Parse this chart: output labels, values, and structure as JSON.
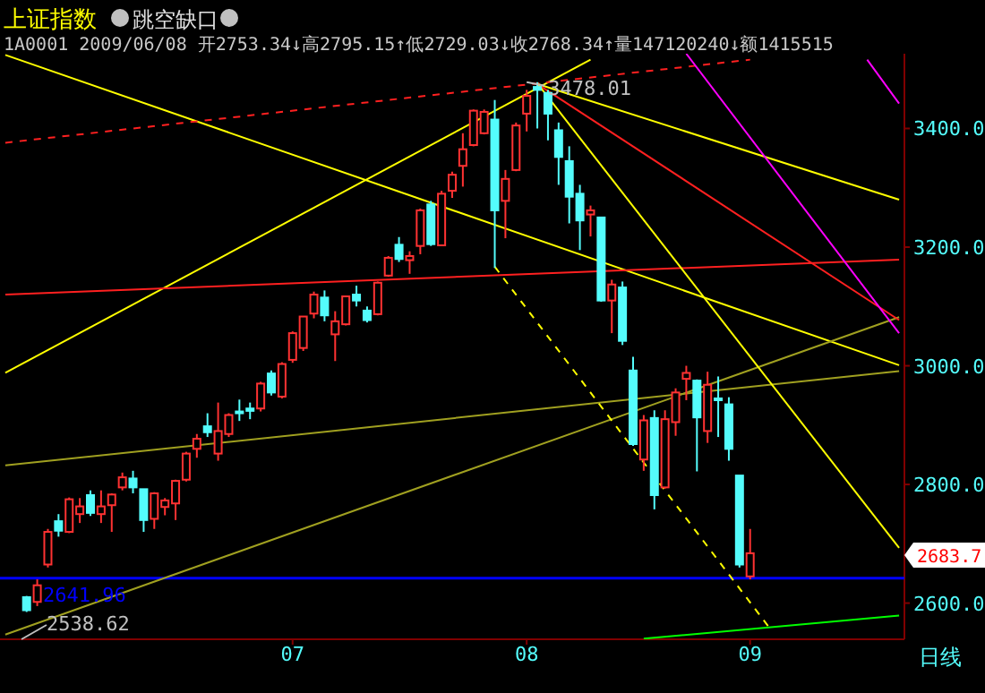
{
  "chart_data": {
    "type": "candlestick",
    "title": "上证指数",
    "subtitle": "1A0001 2009/06/08 开2753.34↓高2795.15↑低2729.03↓收2768.34↑量147120240↓额1415515",
    "categories": [
      null,
      null,
      null,
      null,
      null,
      null,
      null,
      null,
      null,
      null,
      null,
      null,
      null,
      null,
      null,
      null,
      null,
      null,
      null,
      null,
      null,
      null,
      null,
      null,
      null,
      null,
      null,
      "07",
      null,
      null,
      null,
      null,
      null,
      null,
      null,
      null,
      null,
      null,
      null,
      null,
      null,
      null,
      null,
      null,
      null,
      null,
      null,
      null,
      null,
      "08",
      null,
      null,
      null,
      null,
      null,
      null,
      null,
      null,
      null,
      null,
      null,
      null,
      null,
      null,
      null,
      null,
      null,
      null,
      null,
      null,
      "09",
      null,
      null,
      null,
      null,
      null,
      null,
      null,
      null,
      null,
      null,
      null,
      null,
      null,
      null
    ],
    "ohlc": [
      null,
      null,
      [
        2610,
        2612,
        2585,
        2588
      ],
      [
        2602,
        2640,
        2595,
        2630
      ],
      [
        2665,
        2725,
        2660,
        2720
      ],
      [
        2738,
        2750,
        2712,
        2722
      ],
      [
        2720,
        2778,
        2718,
        2775
      ],
      [
        2750,
        2777,
        2735,
        2763
      ],
      [
        2782,
        2790,
        2747,
        2752
      ],
      [
        2750,
        2790,
        2735,
        2763
      ],
      [
        2765,
        2785,
        2720,
        2783
      ],
      [
        2795,
        2820,
        2790,
        2812
      ],
      [
        2810,
        2823,
        2785,
        2795
      ],
      [
        2792,
        2792,
        2720,
        2740
      ],
      [
        2742,
        2787,
        2725,
        2785
      ],
      [
        2762,
        2777,
        2748,
        2773
      ],
      [
        2768,
        2808,
        2740,
        2806
      ],
      [
        2808,
        2855,
        2805,
        2852
      ],
      [
        2860,
        2885,
        2845,
        2877
      ],
      [
        2898,
        2920,
        2880,
        2888
      ],
      [
        2852,
        2938,
        2840,
        2890
      ],
      [
        2885,
        2920,
        2880,
        2917
      ],
      [
        2923,
        2943,
        2907,
        2920
      ],
      [
        2928,
        2938,
        2910,
        2924
      ],
      [
        2928,
        2973,
        2923,
        2970
      ],
      [
        2987,
        2992,
        2950,
        2955
      ],
      [
        2948,
        3006,
        2945,
        3003
      ],
      [
        3010,
        3058,
        3005,
        3055
      ],
      [
        3030,
        3083,
        3025,
        3083
      ],
      [
        3088,
        3125,
        3080,
        3120
      ],
      [
        3115,
        3127,
        3075,
        3085
      ],
      [
        3053,
        3092,
        3008,
        3075
      ],
      [
        3070,
        3118,
        3068,
        3117
      ],
      [
        3120,
        3135,
        3100,
        3110
      ],
      [
        3093,
        3100,
        3073,
        3077
      ],
      [
        3087,
        3142,
        3085,
        3140
      ],
      [
        3152,
        3185,
        3150,
        3182
      ],
      [
        3204,
        3217,
        3175,
        3180
      ],
      [
        3178,
        3193,
        3155,
        3185
      ],
      [
        3202,
        3265,
        3188,
        3262
      ],
      [
        3272,
        3278,
        3202,
        3205
      ],
      [
        3203,
        3295,
        3202,
        3290
      ],
      [
        3295,
        3327,
        3283,
        3322
      ],
      [
        3337,
        3392,
        3302,
        3365
      ],
      [
        3372,
        3432,
        3370,
        3430
      ],
      [
        3392,
        3432,
        3390,
        3428
      ],
      [
        3415,
        3448,
        3165,
        3262
      ],
      [
        3278,
        3330,
        3215,
        3315
      ],
      [
        3330,
        3410,
        3328,
        3405
      ],
      [
        3425,
        3465,
        3395,
        3455
      ],
      [
        3470,
        3478,
        3400,
        3465
      ],
      [
        3460,
        3465,
        3380,
        3425
      ],
      [
        3397,
        3410,
        3305,
        3352
      ],
      [
        3345,
        3370,
        3240,
        3285
      ],
      [
        3290,
        3305,
        3195,
        3245
      ],
      [
        3255,
        3270,
        3218,
        3262
      ],
      [
        3250,
        3250,
        3108,
        3110
      ],
      [
        3110,
        3145,
        3055,
        3137
      ],
      [
        3132,
        3142,
        3035,
        3042
      ],
      [
        2992,
        3015,
        2865,
        2868
      ],
      [
        2842,
        2917,
        2823,
        2908
      ],
      [
        2912,
        2925,
        2758,
        2782
      ],
      [
        2795,
        2925,
        2793,
        2910
      ],
      [
        2905,
        2962,
        2882,
        2955
      ],
      [
        2978,
        3000,
        2942,
        2988
      ],
      [
        2975,
        2977,
        2822,
        2913
      ],
      [
        2890,
        2990,
        2870,
        2968
      ],
      [
        2945,
        2982,
        2880,
        2942
      ],
      [
        2935,
        2947,
        2840,
        2860
      ],
      [
        2815,
        2815,
        2660,
        2665
      ],
      [
        2645,
        2725,
        2640,
        2684
      ],
      null,
      null,
      null,
      null,
      null,
      null,
      null,
      null,
      null,
      null,
      null,
      null,
      null,
      null
    ],
    "colors": [
      null,
      null,
      "#54fcfc",
      "#ff3232",
      "#ff3232",
      "#54fcfc",
      "#ff3232",
      "#ff3232",
      "#54fcfc",
      "#ff3232",
      "#ff3232",
      "#ff3232",
      "#54fcfc",
      "#54fcfc",
      "#ff3232",
      "#ff3232",
      "#ff3232",
      "#ff3232",
      "#ff3232",
      "#54fcfc",
      "#ff3232",
      "#ff3232",
      "#54fcfc",
      "#54fcfc",
      "#ff3232",
      "#54fcfc",
      "#ff3232",
      "#ff3232",
      "#ff3232",
      "#ff3232",
      "#54fcfc",
      "#ff3232",
      "#ff3232",
      "#54fcfc",
      "#54fcfc",
      "#ff3232",
      "#ff3232",
      "#54fcfc",
      "#ff3232",
      "#ff3232",
      "#54fcfc",
      "#ff3232",
      "#ff3232",
      "#ff3232",
      "#ff3232",
      "#ff3232",
      "#54fcfc",
      "#ff3232",
      "#ff3232",
      "#ff3232",
      "#54fcfc",
      "#54fcfc",
      "#54fcfc",
      "#54fcfc",
      "#54fcfc",
      "#ff3232",
      "#54fcfc",
      "#ff3232",
      "#54fcfc",
      "#54fcfc",
      "#ff3232",
      "#54fcfc",
      "#ff3232",
      "#ff3232",
      "#ff3232",
      "#54fcfc",
      "#ff3232",
      "#54fcfc",
      "#54fcfc",
      "#54fcfc",
      "#ff3232",
      null,
      null,
      null,
      null,
      null,
      null,
      null,
      null,
      null,
      null,
      null,
      null,
      null,
      null
    ],
    "series": [
      {
        "type": "line",
        "color": "#ffff00",
        "values": [
          3524,
          null,
          null,
          null,
          null,
          null,
          null,
          null,
          null,
          null,
          null,
          null,
          null,
          null,
          null,
          null,
          null,
          null,
          null,
          null,
          null,
          null,
          null,
          null,
          null,
          null,
          null,
          null,
          null,
          null,
          null,
          null,
          null,
          null,
          null,
          null,
          null,
          null,
          null,
          null,
          null,
          null,
          null,
          null,
          null,
          null,
          null,
          null,
          null,
          null,
          null,
          null,
          null,
          null,
          null,
          null,
          null,
          null,
          null,
          null,
          null,
          null,
          null,
          null,
          null,
          null,
          null,
          null,
          null,
          null,
          null,
          null,
          null,
          null,
          null,
          null,
          null,
          null,
          null,
          null,
          null,
          null,
          null,
          null,
          3001
        ]
      },
      {
        "type": "line",
        "color": "#ffff00",
        "values": [
          2988,
          null,
          null,
          null,
          null,
          null,
          null,
          null,
          null,
          null,
          null,
          null,
          null,
          null,
          null,
          null,
          null,
          null,
          null,
          null,
          null,
          null,
          null,
          null,
          null,
          null,
          null,
          null,
          null,
          null,
          null,
          null,
          null,
          null,
          null,
          null,
          null,
          null,
          null,
          null,
          null,
          null,
          null,
          null,
          null,
          null,
          null,
          null,
          null,
          null,
          null,
          null,
          null,
          null,
          null,
          3516,
          null,
          null,
          null,
          null,
          null,
          null,
          null,
          null,
          null,
          null,
          null,
          null,
          null,
          null,
          null,
          null,
          null,
          null,
          null,
          null,
          null,
          null,
          null,
          null,
          null,
          null,
          null,
          null,
          null
        ]
      },
      {
        "type": "line",
        "color": "#ff2020",
        "line_style": "dashed",
        "values": [
          3376,
          null,
          null,
          null,
          null,
          null,
          null,
          null,
          null,
          null,
          null,
          null,
          null,
          null,
          null,
          null,
          null,
          null,
          null,
          null,
          null,
          null,
          null,
          null,
          null,
          null,
          null,
          null,
          null,
          null,
          null,
          null,
          null,
          null,
          null,
          null,
          null,
          null,
          null,
          null,
          null,
          null,
          null,
          null,
          null,
          null,
          null,
          null,
          null,
          null,
          null,
          null,
          null,
          null,
          null,
          null,
          null,
          null,
          null,
          null,
          null,
          null,
          null,
          null,
          null,
          null,
          null,
          null,
          null,
          null,
          3516,
          null,
          null,
          null,
          null,
          null,
          null,
          null,
          null,
          null,
          null,
          null,
          null,
          null,
          null
        ]
      },
      {
        "type": "line",
        "color": "#ff2020",
        "values": [
          3120,
          null,
          null,
          null,
          null,
          null,
          null,
          null,
          null,
          null,
          null,
          null,
          null,
          null,
          null,
          null,
          null,
          null,
          null,
          null,
          null,
          null,
          null,
          null,
          null,
          null,
          null,
          null,
          null,
          null,
          null,
          null,
          null,
          null,
          null,
          null,
          null,
          null,
          null,
          null,
          null,
          null,
          null,
          null,
          null,
          null,
          null,
          null,
          null,
          null,
          null,
          null,
          null,
          null,
          null,
          null,
          null,
          null,
          null,
          null,
          null,
          null,
          null,
          null,
          null,
          null,
          null,
          null,
          null,
          null,
          null,
          null,
          null,
          null,
          null,
          null,
          null,
          null,
          null,
          null,
          null,
          null,
          null,
          null,
          3179
        ]
      },
      {
        "type": "line",
        "color": "#a0a020",
        "values": [
          2832,
          null,
          null,
          null,
          null,
          null,
          null,
          null,
          null,
          null,
          null,
          null,
          null,
          null,
          null,
          null,
          null,
          null,
          null,
          null,
          null,
          null,
          null,
          null,
          null,
          null,
          null,
          null,
          null,
          null,
          null,
          null,
          null,
          null,
          null,
          null,
          null,
          null,
          null,
          null,
          null,
          null,
          null,
          null,
          null,
          null,
          null,
          null,
          null,
          null,
          null,
          null,
          null,
          null,
          null,
          null,
          null,
          null,
          null,
          null,
          null,
          null,
          null,
          null,
          null,
          null,
          null,
          null,
          null,
          null,
          null,
          null,
          null,
          null,
          null,
          null,
          null,
          null,
          null,
          null,
          null,
          null,
          null,
          null,
          2991
        ]
      },
      {
        "type": "line",
        "color": "#a0a020",
        "values": [
          2547,
          null,
          null,
          null,
          null,
          null,
          null,
          null,
          null,
          null,
          null,
          null,
          null,
          null,
          null,
          null,
          null,
          null,
          null,
          null,
          null,
          null,
          null,
          null,
          null,
          null,
          null,
          null,
          null,
          null,
          null,
          null,
          null,
          null,
          null,
          null,
          null,
          null,
          null,
          null,
          null,
          null,
          null,
          null,
          null,
          null,
          null,
          null,
          null,
          null,
          null,
          null,
          null,
          null,
          null,
          null,
          null,
          null,
          null,
          null,
          null,
          null,
          null,
          null,
          null,
          null,
          null,
          null,
          null,
          null,
          null,
          null,
          null,
          null,
          null,
          null,
          null,
          null,
          null,
          null,
          null,
          null,
          null,
          null,
          3082
        ]
      },
      {
        "type": "line",
        "color": "#ffff00",
        "values": [
          null,
          null,
          null,
          null,
          null,
          null,
          null,
          null,
          null,
          null,
          null,
          null,
          null,
          null,
          null,
          null,
          null,
          null,
          null,
          null,
          null,
          null,
          null,
          null,
          null,
          null,
          null,
          null,
          null,
          null,
          null,
          null,
          null,
          null,
          null,
          null,
          null,
          null,
          null,
          null,
          null,
          null,
          null,
          null,
          null,
          null,
          null,
          null,
          null,
          null,
          3475,
          null,
          null,
          null,
          null,
          null,
          null,
          null,
          null,
          null,
          null,
          null,
          null,
          null,
          null,
          null,
          null,
          null,
          null,
          null,
          null,
          null,
          null,
          null,
          null,
          null,
          null,
          null,
          null,
          null,
          null,
          null,
          null,
          null,
          3280
        ]
      },
      {
        "type": "line",
        "color": "#ff2020",
        "values": [
          null,
          null,
          null,
          null,
          null,
          null,
          null,
          null,
          null,
          null,
          null,
          null,
          null,
          null,
          null,
          null,
          null,
          null,
          null,
          null,
          null,
          null,
          null,
          null,
          null,
          null,
          null,
          null,
          null,
          null,
          null,
          null,
          null,
          null,
          null,
          null,
          null,
          null,
          null,
          null,
          null,
          null,
          null,
          null,
          null,
          null,
          null,
          null,
          null,
          null,
          3475,
          null,
          null,
          null,
          null,
          null,
          null,
          null,
          null,
          null,
          null,
          null,
          null,
          null,
          null,
          null,
          null,
          null,
          null,
          null,
          null,
          null,
          null,
          null,
          null,
          null,
          null,
          null,
          null,
          null,
          null,
          null,
          null,
          null,
          3077
        ]
      },
      {
        "type": "line",
        "color": "#ffff00",
        "values": [
          null,
          null,
          null,
          null,
          null,
          null,
          null,
          null,
          null,
          null,
          null,
          null,
          null,
          null,
          null,
          null,
          null,
          null,
          null,
          null,
          null,
          null,
          null,
          null,
          null,
          null,
          null,
          null,
          null,
          null,
          null,
          null,
          null,
          null,
          null,
          null,
          null,
          null,
          null,
          null,
          null,
          null,
          null,
          null,
          null,
          null,
          null,
          null,
          null,
          null,
          3476,
          null,
          null,
          null,
          null,
          null,
          null,
          null,
          null,
          null,
          null,
          null,
          null,
          null,
          null,
          null,
          null,
          null,
          null,
          null,
          null,
          null,
          null,
          null,
          null,
          null,
          null,
          null,
          null,
          null,
          null,
          null,
          null,
          null,
          2693
        ]
      },
      {
        "type": "line",
        "color": "#ffff00",
        "line_style": "dashed",
        "values": [
          null,
          null,
          null,
          null,
          null,
          null,
          null,
          null,
          null,
          null,
          null,
          null,
          null,
          null,
          null,
          null,
          null,
          null,
          null,
          null,
          null,
          null,
          null,
          null,
          null,
          null,
          null,
          null,
          null,
          null,
          null,
          null,
          null,
          null,
          null,
          null,
          null,
          null,
          null,
          null,
          null,
          null,
          null,
          null,
          null,
          null,
          3167,
          null,
          null,
          null,
          null,
          null,
          null,
          null,
          null,
          null,
          null,
          null,
          null,
          null,
          null,
          null,
          null,
          null,
          null,
          null,
          null,
          null,
          null,
          null,
          null,
          null,
          2554,
          null,
          null,
          null,
          null,
          null,
          null,
          null,
          null,
          null,
          null,
          null,
          null
        ]
      },
      {
        "type": "line",
        "color": "#ff00ff",
        "values": [
          null,
          null,
          null,
          null,
          null,
          null,
          null,
          null,
          null,
          null,
          null,
          null,
          null,
          null,
          null,
          null,
          null,
          null,
          null,
          null,
          null,
          null,
          null,
          null,
          null,
          null,
          null,
          null,
          null,
          null,
          null,
          null,
          null,
          null,
          null,
          null,
          null,
          null,
          null,
          null,
          null,
          null,
          null,
          null,
          null,
          null,
          null,
          null,
          null,
          null,
          null,
          null,
          null,
          null,
          null,
          null,
          null,
          null,
          null,
          null,
          null,
          null,
          null,
          null,
          3526,
          null,
          null,
          null,
          null,
          null,
          null,
          null,
          null,
          null,
          null,
          null,
          null,
          null,
          null,
          null,
          null,
          null,
          null,
          null,
          3055
        ]
      },
      {
        "type": "line",
        "color": "#ff00ff",
        "values": [
          null,
          null,
          null,
          null,
          null,
          null,
          null,
          null,
          null,
          null,
          null,
          null,
          null,
          null,
          null,
          null,
          null,
          null,
          null,
          null,
          null,
          null,
          null,
          null,
          null,
          null,
          null,
          null,
          null,
          null,
          null,
          null,
          null,
          null,
          null,
          null,
          null,
          null,
          null,
          null,
          null,
          null,
          null,
          null,
          null,
          null,
          null,
          null,
          null,
          null,
          null,
          null,
          null,
          null,
          null,
          null,
          null,
          null,
          null,
          null,
          null,
          null,
          null,
          null,
          null,
          null,
          null,
          null,
          null,
          null,
          null,
          null,
          null,
          null,
          null,
          null,
          null,
          null,
          null,
          null,
          null,
          3516,
          null,
          null,
          3442
        ]
      },
      {
        "type": "line",
        "color": "#00ff00",
        "values": [
          null,
          null,
          null,
          null,
          null,
          null,
          null,
          null,
          null,
          null,
          null,
          null,
          null,
          null,
          null,
          null,
          null,
          null,
          null,
          null,
          null,
          null,
          null,
          null,
          null,
          null,
          null,
          null,
          null,
          null,
          null,
          null,
          null,
          null,
          null,
          null,
          null,
          null,
          null,
          null,
          null,
          null,
          null,
          null,
          null,
          null,
          null,
          null,
          null,
          null,
          null,
          null,
          null,
          null,
          null,
          null,
          null,
          null,
          null,
          null,
          2540,
          null,
          null,
          null,
          null,
          null,
          null,
          null,
          null,
          null,
          null,
          null,
          null,
          null,
          null,
          null,
          null,
          null,
          null,
          null,
          null,
          null,
          null,
          null,
          2579
        ]
      }
    ],
    "ref_lines": [
      {
        "axis": "y",
        "value": 2641.96,
        "label": "2641.96",
        "color": "#0000ff"
      }
    ],
    "annotations": [
      "跳空缺口",
      {
        "text": "3478.01",
        "x": "08",
        "y": 3478
      },
      "2538.62",
      "2683.7",
      "日线"
    ],
    "ylim": [
      2539,
      3526
    ],
    "yticks": [
      {
        "value": 2600,
        "label": "2600.0"
      },
      {
        "value": 2800,
        "label": "2800.0"
      },
      {
        "value": 3000,
        "label": "3000.0"
      },
      {
        "value": 3200,
        "label": "3200.0"
      },
      {
        "value": 3400,
        "label": "3400.0"
      }
    ]
  }
}
